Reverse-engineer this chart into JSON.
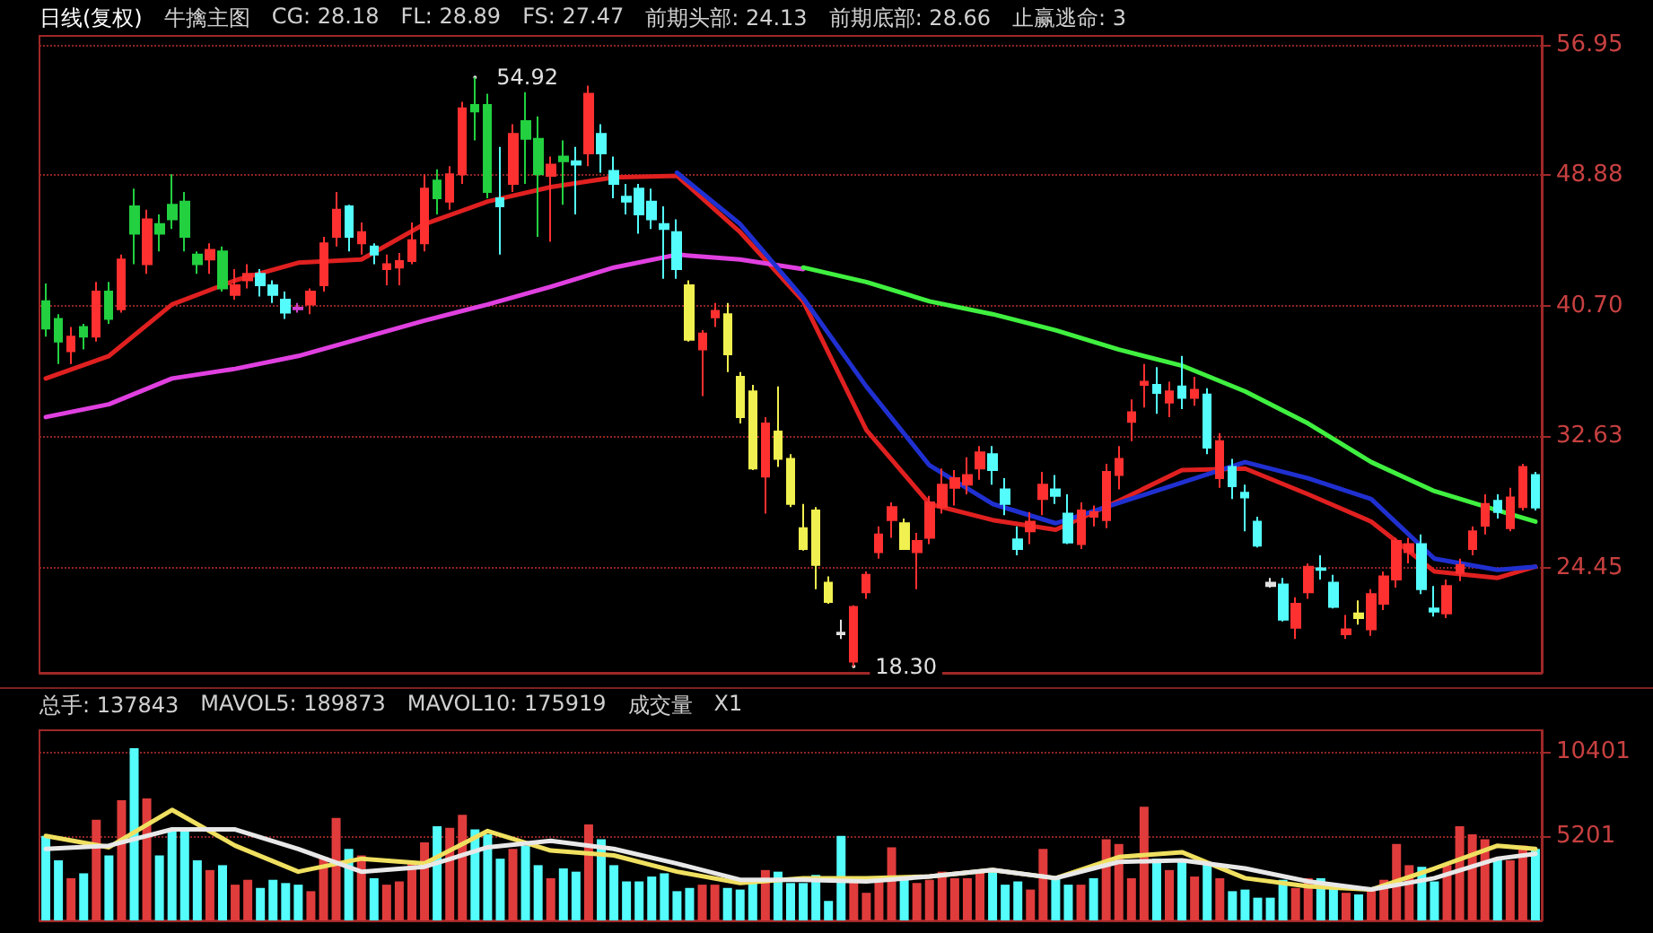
{
  "chart_data": [
    {
      "type": "candlestick",
      "title": "日线(复权)",
      "annotations": [
        "牛擒主图",
        "CG: 28.18",
        "FL: 28.89",
        "FS: 27.47",
        "前期头部: 24.13",
        "前期底部: 28.66",
        "止赢逃命: 3",
        "54.92",
        "18.30"
      ],
      "categories": [
        null,
        null,
        null,
        null,
        null,
        null,
        null,
        null,
        null,
        null,
        null,
        null,
        null,
        null,
        null,
        null,
        null,
        null,
        null,
        null,
        null,
        null,
        null,
        null,
        null,
        null,
        null,
        null,
        null,
        null,
        null,
        null,
        null,
        null,
        null,
        null,
        null,
        null,
        null,
        null,
        null,
        null,
        null,
        null,
        null,
        null,
        null,
        null,
        null,
        null,
        null,
        null,
        null,
        null,
        null,
        null,
        null,
        null,
        null,
        null,
        null,
        null,
        null,
        null,
        null,
        null,
        null,
        null,
        null,
        null,
        null,
        null,
        null,
        null,
        null,
        null,
        null,
        null,
        null,
        null,
        null,
        null,
        null,
        null,
        null,
        null,
        null,
        null,
        null,
        null,
        null,
        null,
        null,
        null,
        null,
        null,
        null,
        null,
        null,
        null,
        null,
        null,
        null,
        null,
        null,
        null,
        null,
        null,
        null,
        null,
        null,
        null,
        null,
        null,
        null,
        null,
        null,
        null,
        null
      ],
      "ohlc": [
        [
          41.0,
          42.1,
          38.8,
          39.3
        ],
        [
          39.9,
          40.2,
          37.1,
          38.5
        ],
        [
          37.9,
          39.4,
          37.1,
          38.8
        ],
        [
          39.4,
          39.6,
          38.0,
          38.8
        ],
        [
          38.8,
          42.2,
          38.5,
          41.6
        ],
        [
          41.6,
          42.2,
          39.6,
          39.9
        ],
        [
          40.5,
          43.9,
          40.3,
          43.6
        ],
        [
          46.9,
          48.0,
          43.3,
          45.2
        ],
        [
          43.3,
          46.7,
          42.7,
          46.1
        ],
        [
          45.8,
          46.4,
          44.1,
          45.2
        ],
        [
          47.0,
          48.9,
          45.5,
          46.1
        ],
        [
          47.2,
          47.8,
          44.1,
          45.0
        ],
        [
          43.9,
          44.1,
          42.7,
          43.3
        ],
        [
          43.6,
          44.6,
          42.7,
          44.2
        ],
        [
          44.1,
          44.4,
          41.6,
          41.8
        ],
        [
          41.4,
          43.0,
          41.1,
          42.0
        ],
        [
          42.3,
          43.3,
          41.8,
          42.7
        ],
        [
          42.7,
          43.0,
          41.3,
          42.0
        ],
        [
          42.0,
          42.3,
          40.9,
          41.4
        ],
        [
          41.1,
          41.6,
          39.9,
          40.3
        ],
        [
          40.5,
          40.9,
          40.3,
          40.6
        ],
        [
          40.8,
          41.8,
          40.2,
          41.6
        ],
        [
          42.0,
          45.0,
          41.6,
          44.6
        ],
        [
          45.0,
          47.8,
          44.4,
          46.7
        ],
        [
          46.9,
          47.0,
          44.1,
          45.0
        ],
        [
          44.6,
          45.9,
          43.9,
          45.3
        ],
        [
          44.4,
          44.6,
          43.3,
          43.9
        ],
        [
          43.0,
          43.9,
          42.0,
          43.3
        ],
        [
          43.1,
          44.0,
          42.0,
          43.5
        ],
        [
          43.5,
          45.9,
          43.3,
          44.8
        ],
        [
          44.6,
          48.9,
          44.1,
          48.0
        ],
        [
          48.5,
          49.2,
          46.4,
          47.4
        ],
        [
          47.2,
          49.4,
          46.7,
          48.9
        ],
        [
          48.9,
          53.4,
          48.3,
          53.0
        ],
        [
          53.2,
          54.92,
          51.0,
          52.8
        ],
        [
          53.2,
          53.9,
          47.4,
          47.8
        ],
        [
          47.4,
          50.6,
          43.9,
          46.9
        ],
        [
          48.3,
          52.0,
          47.8,
          51.4
        ],
        [
          52.2,
          54.0,
          48.3,
          51.1
        ],
        [
          51.1,
          52.5,
          45.0,
          48.9
        ],
        [
          48.8,
          50.0,
          44.7,
          49.5
        ],
        [
          50.0,
          51.0,
          47.0,
          49.7
        ],
        [
          49.7,
          50.6,
          46.4,
          49.5
        ],
        [
          50.2,
          54.4,
          49.4,
          53.9
        ],
        [
          51.4,
          52.0,
          49.0,
          50.2
        ],
        [
          49.1,
          50.0,
          47.4,
          48.3
        ],
        [
          47.5,
          48.3,
          46.4,
          47.2
        ],
        [
          48.0,
          48.3,
          45.2,
          46.4
        ],
        [
          47.2,
          48.0,
          45.5,
          46.1
        ],
        [
          45.8,
          46.9,
          42.4,
          45.5
        ],
        [
          45.3,
          46.1,
          42.4,
          43.0
        ],
        [
          42.0,
          42.3,
          38.5,
          38.6
        ],
        [
          38.0,
          39.2,
          35.1,
          39.0
        ],
        [
          40.0,
          40.9,
          39.4,
          40.4
        ],
        [
          40.2,
          40.9,
          36.6,
          37.7
        ],
        [
          36.3,
          36.6,
          33.4,
          33.8
        ],
        [
          35.4,
          35.8,
          30.5,
          30.6
        ],
        [
          30.1,
          33.8,
          27.8,
          33.4
        ],
        [
          32.9,
          35.7,
          30.7,
          31.2
        ],
        [
          31.2,
          31.5,
          28.2,
          28.4
        ],
        [
          26.9,
          28.4,
          25.5,
          25.6
        ],
        [
          28.0,
          28.2,
          23.1,
          24.6
        ],
        [
          23.5,
          23.9,
          22.2,
          22.3
        ],
        [
          20.4,
          21.2,
          20.0,
          20.3
        ],
        [
          18.6,
          22.1,
          18.3,
          22.0
        ],
        [
          22.9,
          24.2,
          22.5,
          24.0
        ],
        [
          25.4,
          27.0,
          25.0,
          26.5
        ],
        [
          27.4,
          28.5,
          26.3,
          28.2
        ],
        [
          27.2,
          27.5,
          25.6,
          25.6
        ],
        [
          25.4,
          26.6,
          23.1,
          26.1
        ],
        [
          26.3,
          28.9,
          25.9,
          28.5
        ],
        [
          28.2,
          30.6,
          27.8,
          29.6
        ],
        [
          29.4,
          30.5,
          28.3,
          30.0
        ],
        [
          29.6,
          31.3,
          29.0,
          30.2
        ],
        [
          30.6,
          32.0,
          29.9,
          31.6
        ],
        [
          31.5,
          32.0,
          29.6,
          30.5
        ],
        [
          29.3,
          30.0,
          27.7,
          28.4
        ],
        [
          26.2,
          27.0,
          25.2,
          25.6
        ],
        [
          26.7,
          27.9,
          25.9,
          27.3
        ],
        [
          28.7,
          30.4,
          27.7,
          29.6
        ],
        [
          29.3,
          30.2,
          28.4,
          28.9
        ],
        [
          27.8,
          29.0,
          25.9,
          26.0
        ],
        [
          25.9,
          28.5,
          25.6,
          28.0
        ],
        [
          27.6,
          28.3,
          27.0,
          27.9
        ],
        [
          27.4,
          30.9,
          26.9,
          30.4
        ],
        [
          30.2,
          32.0,
          29.3,
          31.2
        ],
        [
          33.5,
          34.9,
          32.3,
          34.1
        ],
        [
          35.8,
          37.1,
          34.4,
          36.0
        ],
        [
          35.8,
          36.9,
          34.0,
          35.3
        ],
        [
          34.7,
          36.0,
          33.8,
          35.4
        ],
        [
          35.7,
          37.6,
          34.3,
          35.0
        ],
        [
          35.0,
          36.3,
          34.5,
          35.5
        ],
        [
          35.2,
          35.6,
          31.5,
          31.9
        ],
        [
          30.0,
          32.8,
          29.4,
          32.3
        ],
        [
          30.7,
          31.2,
          28.7,
          29.5
        ],
        [
          29.1,
          29.6,
          26.7,
          28.8
        ],
        [
          27.3,
          27.6,
          25.7,
          25.8
        ],
        [
          23.5,
          23.8,
          23.2,
          23.3
        ],
        [
          23.4,
          23.8,
          21.1,
          21.2
        ],
        [
          20.7,
          22.6,
          20.0,
          22.2
        ],
        [
          22.9,
          24.7,
          22.5,
          24.5
        ],
        [
          24.3,
          25.2,
          23.7,
          24.4
        ],
        [
          23.5,
          24.0,
          21.9,
          22.0
        ],
        [
          20.3,
          21.5,
          20.0,
          20.6
        ],
        [
          21.6,
          22.4,
          20.9,
          21.3
        ],
        [
          20.6,
          23.1,
          20.2,
          22.8
        ],
        [
          22.2,
          24.2,
          21.8,
          23.9
        ],
        [
          23.7,
          26.3,
          23.2,
          26.1
        ],
        [
          25.4,
          26.3,
          24.7,
          25.9
        ],
        [
          25.9,
          26.5,
          22.8,
          23.1
        ],
        [
          21.9,
          23.3,
          21.4,
          21.7
        ],
        [
          21.6,
          23.7,
          21.3,
          23.3
        ],
        [
          24.1,
          25.0,
          23.6,
          24.6
        ],
        [
          25.6,
          27.0,
          25.2,
          26.7
        ],
        [
          27.05,
          29.0,
          26.5,
          28.4
        ],
        [
          28.6,
          29.0,
          27.5,
          27.9
        ],
        [
          26.9,
          29.4,
          26.7,
          28.8
        ],
        [
          28.2,
          30.9,
          28.0,
          30.7
        ],
        [
          30.2,
          30.4,
          28.0,
          28.18
        ]
      ],
      "colors": [
        "#22d040",
        "#22d040",
        "#ff3030",
        "#22d040",
        "#ff3030",
        "#22d040",
        "#ff3030",
        "#22d040",
        "#ff3030",
        "#22d040",
        "#22d040",
        "#22d040",
        "#22d040",
        "#ff3030",
        "#22d040",
        "#ff3030",
        "#ff3030",
        "#54fcfc",
        "#54fcfc",
        "#54fcfc",
        "#d040d0",
        "#ff3030",
        "#ff3030",
        "#ff3030",
        "#54fcfc",
        "#ff3030",
        "#54fcfc",
        "#ff3030",
        "#ff3030",
        "#ff3030",
        "#ff3030",
        "#22d040",
        "#ff3030",
        "#ff3030",
        "#22d040",
        "#22d040",
        "#54fcfc",
        "#ff3030",
        "#22d040",
        "#22d040",
        "#ff3030",
        "#22d040",
        "#54fcfc",
        "#ff3030",
        "#54fcfc",
        "#54fcfc",
        "#54fcfc",
        "#54fcfc",
        "#54fcfc",
        "#54fcfc",
        "#54fcfc",
        "#f0f050",
        "#ff3030",
        "#ff3030",
        "#f0f050",
        "#f0f050",
        "#f0f050",
        "#ff3030",
        "#f0f050",
        "#f0f050",
        "#f0f050",
        "#f0f050",
        "#f0f050",
        "#e0e0e0",
        "#ff3030",
        "#ff3030",
        "#ff3030",
        "#ff3030",
        "#f0f050",
        "#ff3030",
        "#ff3030",
        "#ff3030",
        "#ff3030",
        "#ff3030",
        "#ff3030",
        "#54fcfc",
        "#54fcfc",
        "#54fcfc",
        "#ff3030",
        "#ff3030",
        "#54fcfc",
        "#54fcfc",
        "#ff3030",
        "#ff3030",
        "#ff3030",
        "#ff3030",
        "#ff3030",
        "#ff3030",
        "#54fcfc",
        "#ff3030",
        "#54fcfc",
        "#ff3030",
        "#54fcfc",
        "#ff3030",
        "#54fcfc",
        "#54fcfc",
        "#54fcfc",
        "#e0e0e0",
        "#54fcfc",
        "#ff3030",
        "#ff3030",
        "#54fcfc",
        "#54fcfc",
        "#ff3030",
        "#f0f050",
        "#ff3030",
        "#ff3030",
        "#ff3030",
        "#ff3030",
        "#54fcfc",
        "#54fcfc",
        "#ff3030",
        "#ff3030",
        "#ff3030",
        "#ff3030",
        "#54fcfc",
        "#ff3030",
        "#ff3030",
        "#54fcfc"
      ],
      "series": [
        {
          "type": "line",
          "color": "#e02020",
          "values": [
            36.2,
            null,
            null,
            null,
            null,
            37.6,
            null,
            null,
            null,
            null,
            40.8,
            null,
            null,
            null,
            null,
            42.3,
            null,
            null,
            null,
            null,
            43.4,
            null,
            null,
            null,
            null,
            43.6,
            null,
            null,
            null,
            null,
            45.8,
            null,
            null,
            null,
            null,
            47.2,
            null,
            null,
            null,
            null,
            48.1,
            null,
            null,
            null,
            null,
            48.7,
            null,
            null,
            null,
            null,
            48.8,
            null,
            null,
            null,
            null,
            45.3,
            null,
            null,
            null,
            null,
            41.0,
            null,
            null,
            null,
            null,
            33.0,
            null,
            null,
            null,
            null,
            28.4,
            null,
            null,
            null,
            null,
            27.4,
            null,
            null,
            null,
            null,
            26.8,
            null,
            null,
            null,
            null,
            28.6,
            null,
            null,
            null,
            null,
            30.5,
            null,
            null,
            null,
            null,
            30.6,
            null,
            null,
            null,
            null,
            29.0,
            null,
            null,
            null,
            null,
            27.3,
            null,
            null,
            null,
            null,
            24.2,
            null,
            null,
            null,
            null,
            23.8,
            null,
            null,
            24.5
          ]
        },
        {
          "type": "line",
          "color": "#e040e0",
          "values": [
            33.8,
            null,
            null,
            null,
            null,
            34.6,
            null,
            null,
            null,
            null,
            36.2,
            null,
            null,
            null,
            null,
            36.8,
            null,
            null,
            null,
            null,
            37.6,
            null,
            null,
            null,
            null,
            38.7,
            null,
            null,
            null,
            null,
            39.8,
            null,
            null,
            null,
            null,
            40.8,
            null,
            null,
            null,
            null,
            41.9,
            null,
            null,
            null,
            null,
            43.1,
            null,
            null,
            null,
            null,
            43.9,
            null,
            null,
            null,
            null,
            43.6,
            null,
            null,
            null,
            null,
            43.0,
            null,
            null,
            null,
            null,
            null,
            null,
            null,
            null,
            null,
            null,
            null,
            null,
            null,
            null,
            null,
            null,
            null,
            null,
            null,
            null,
            null,
            null,
            null,
            null,
            null,
            null,
            null,
            null,
            null,
            null,
            null,
            null,
            null,
            null,
            null,
            null,
            null,
            null,
            null,
            null,
            null,
            null,
            null,
            null,
            null,
            null,
            null,
            null,
            null,
            null,
            null,
            null,
            null,
            null,
            null,
            null,
            null,
            null
          ]
        },
        {
          "type": "line",
          "color": "#40f040",
          "values": [
            null,
            null,
            null,
            null,
            null,
            null,
            null,
            null,
            null,
            null,
            null,
            null,
            null,
            null,
            null,
            null,
            null,
            null,
            null,
            null,
            null,
            null,
            null,
            null,
            null,
            null,
            null,
            null,
            null,
            null,
            null,
            null,
            null,
            null,
            null,
            null,
            null,
            null,
            null,
            null,
            null,
            null,
            null,
            null,
            null,
            null,
            null,
            null,
            null,
            null,
            null,
            null,
            null,
            null,
            null,
            null,
            null,
            null,
            null,
            null,
            43.1,
            null,
            null,
            null,
            null,
            42.2,
            null,
            null,
            null,
            null,
            41.0,
            null,
            null,
            null,
            null,
            40.2,
            null,
            null,
            null,
            null,
            39.2,
            null,
            null,
            null,
            null,
            38.0,
            null,
            null,
            null,
            null,
            37.0,
            null,
            null,
            null,
            null,
            35.4,
            null,
            null,
            null,
            null,
            33.4,
            null,
            null,
            null,
            null,
            31.0,
            null,
            null,
            null,
            null,
            29.2,
            null,
            null,
            null,
            null,
            28.0,
            null,
            null,
            27.3
          ]
        },
        {
          "type": "line",
          "color": "#2030d0",
          "values": [
            null,
            null,
            null,
            null,
            null,
            null,
            null,
            null,
            null,
            null,
            null,
            null,
            null,
            null,
            null,
            null,
            null,
            null,
            null,
            null,
            null,
            null,
            null,
            null,
            null,
            null,
            null,
            null,
            null,
            null,
            null,
            null,
            null,
            null,
            null,
            null,
            null,
            null,
            null,
            null,
            null,
            null,
            null,
            null,
            null,
            null,
            null,
            null,
            null,
            null,
            49.0,
            null,
            null,
            null,
            null,
            45.8,
            null,
            null,
            null,
            null,
            41.2,
            null,
            null,
            null,
            null,
            35.7,
            null,
            null,
            null,
            null,
            30.8,
            null,
            null,
            null,
            null,
            28.4,
            null,
            null,
            null,
            null,
            27.2,
            null,
            null,
            null,
            null,
            null,
            null,
            null,
            null,
            null,
            null,
            null,
            null,
            null,
            null,
            31.0,
            null,
            null,
            null,
            null,
            30.0,
            null,
            null,
            null,
            null,
            28.7,
            null,
            null,
            null,
            null,
            25.0,
            null,
            null,
            null,
            null,
            24.3,
            null,
            null,
            24.5
          ]
        }
      ],
      "ylim": [
        17.9,
        57.5
      ],
      "yticks": [
        24.45,
        32.63,
        {
          "value": 40.7,
          "label": "40.70"
        },
        48.88,
        56.95
      ],
      "grid": "y",
      "tick_labels": "y",
      "marker": "none"
    },
    {
      "type": "bar",
      "annotations": [
        "总手: 137843",
        "MAVOL5: 189873",
        "MAVOL10: 175919",
        "成交量",
        "X1"
      ],
      "categories": [
        null,
        null,
        null,
        null,
        null,
        null,
        null,
        null,
        null,
        null,
        null,
        null,
        null,
        null,
        null,
        null,
        null,
        null,
        null,
        null,
        null,
        null,
        null,
        null,
        null,
        null,
        null,
        null,
        null,
        null,
        null,
        null,
        null,
        null,
        null,
        null,
        null,
        null,
        null,
        null,
        null,
        null,
        null,
        null,
        null,
        null,
        null,
        null,
        null,
        null,
        null,
        null,
        null,
        null,
        null,
        null,
        null,
        null,
        null,
        null,
        null,
        null,
        null,
        null,
        null,
        null,
        null,
        null,
        null,
        null,
        null,
        null,
        null,
        null,
        null,
        null,
        null,
        null,
        null,
        null,
        null,
        null,
        null,
        null,
        null,
        null,
        null,
        null,
        null,
        null,
        null,
        null,
        null,
        null,
        null,
        null,
        null,
        null,
        null,
        null,
        null,
        null,
        null,
        null,
        null,
        null,
        null,
        null,
        null,
        null,
        null,
        null,
        null,
        null,
        null,
        null,
        null,
        null,
        null
      ],
      "series": [
        {
          "values": [
            5200,
            3700,
            2600,
            2900,
            6200,
            4000,
            7400,
            10600,
            7500,
            4000,
            5500,
            5700,
            3700,
            3100,
            3400,
            2200,
            2500,
            2000,
            2500,
            2300,
            2200,
            1800,
            3900,
            6300,
            4400,
            4000,
            2600,
            2200,
            2400,
            3600,
            4800,
            5800,
            5700,
            6500,
            5600,
            5300,
            3800,
            4400,
            4600,
            3400,
            2600,
            3200,
            3000,
            5900,
            5000,
            3400,
            2400,
            2400,
            2700,
            2900,
            1800,
            2000,
            2200,
            2200,
            2000,
            1900,
            2400,
            3100,
            3000,
            2300,
            2300,
            2800,
            1200,
            5200,
            2400,
            1700,
            2700,
            4500,
            2600,
            2300,
            2500,
            3000,
            2600,
            2600,
            3000,
            3200,
            2200,
            2400,
            1900,
            4400,
            2700,
            2200,
            2200,
            2600,
            5000,
            4700,
            2600,
            7000,
            3800,
            3100,
            3800,
            2700,
            3600,
            2600,
            1800,
            1900,
            1400,
            1400,
            2500,
            2000,
            2600,
            2600,
            2200,
            1700,
            1600,
            2000,
            2500,
            4700,
            3400,
            3300,
            2400,
            3400,
            5800,
            5300,
            5000,
            3800,
            3700,
            4600,
            4400
          ],
          "colors": [
            "#54fcfc",
            "#54fcfc",
            "#e03c3c",
            "#54fcfc",
            "#e03c3c",
            "#54fcfc",
            "#e03c3c",
            "#54fcfc",
            "#e03c3c",
            "#54fcfc",
            "#54fcfc",
            "#54fcfc",
            "#54fcfc",
            "#e03c3c",
            "#54fcfc",
            "#e03c3c",
            "#e03c3c",
            "#54fcfc",
            "#54fcfc",
            "#54fcfc",
            "#54fcfc",
            "#e03c3c",
            "#e03c3c",
            "#e03c3c",
            "#54fcfc",
            "#e03c3c",
            "#54fcfc",
            "#e03c3c",
            "#e03c3c",
            "#e03c3c",
            "#e03c3c",
            "#54fcfc",
            "#e03c3c",
            "#e03c3c",
            "#54fcfc",
            "#54fcfc",
            "#54fcfc",
            "#e03c3c",
            "#54fcfc",
            "#54fcfc",
            "#e03c3c",
            "#54fcfc",
            "#54fcfc",
            "#e03c3c",
            "#54fcfc",
            "#54fcfc",
            "#54fcfc",
            "#54fcfc",
            "#54fcfc",
            "#54fcfc",
            "#54fcfc",
            "#54fcfc",
            "#e03c3c",
            "#e03c3c",
            "#54fcfc",
            "#54fcfc",
            "#54fcfc",
            "#e03c3c",
            "#54fcfc",
            "#54fcfc",
            "#54fcfc",
            "#54fcfc",
            "#54fcfc",
            "#54fcfc",
            "#e03c3c",
            "#e03c3c",
            "#e03c3c",
            "#e03c3c",
            "#54fcfc",
            "#e03c3c",
            "#e03c3c",
            "#e03c3c",
            "#e03c3c",
            "#e03c3c",
            "#e03c3c",
            "#54fcfc",
            "#54fcfc",
            "#54fcfc",
            "#e03c3c",
            "#e03c3c",
            "#54fcfc",
            "#54fcfc",
            "#e03c3c",
            "#54fcfc",
            "#e03c3c",
            "#e03c3c",
            "#e03c3c",
            "#e03c3c",
            "#54fcfc",
            "#e03c3c",
            "#54fcfc",
            "#e03c3c",
            "#54fcfc",
            "#e03c3c",
            "#54fcfc",
            "#54fcfc",
            "#54fcfc",
            "#54fcfc",
            "#54fcfc",
            "#e03c3c",
            "#e03c3c",
            "#54fcfc",
            "#54fcfc",
            "#e03c3c",
            "#54fcfc",
            "#e03c3c",
            "#e03c3c",
            "#e03c3c",
            "#e03c3c",
            "#54fcfc",
            "#54fcfc",
            "#e03c3c",
            "#e03c3c",
            "#e03c3c",
            "#e03c3c",
            "#54fcfc",
            "#e03c3c",
            "#e03c3c",
            "#54fcfc"
          ]
        },
        {
          "type": "line",
          "color": "#f0e060",
          "values": [
            5200,
            null,
            null,
            null,
            null,
            4500,
            null,
            null,
            null,
            null,
            6800,
            null,
            null,
            null,
            null,
            4600,
            null,
            null,
            null,
            null,
            3000,
            null,
            null,
            null,
            null,
            3800,
            null,
            null,
            null,
            null,
            3500,
            null,
            null,
            null,
            null,
            5500,
            null,
            null,
            null,
            null,
            4300,
            null,
            null,
            null,
            null,
            4000,
            null,
            null,
            null,
            null,
            3000,
            null,
            null,
            null,
            null,
            2300,
            null,
            null,
            null,
            null,
            2600,
            null,
            null,
            null,
            null,
            2600,
            null,
            null,
            null,
            null,
            2700,
            null,
            null,
            null,
            null,
            3100,
            null,
            null,
            null,
            null,
            2600,
            null,
            null,
            null,
            null,
            3900,
            null,
            null,
            null,
            null,
            4200,
            null,
            null,
            null,
            null,
            2600,
            null,
            null,
            null,
            null,
            2100,
            null,
            null,
            null,
            null,
            1900,
            null,
            null,
            null,
            null,
            3200,
            null,
            null,
            null,
            null,
            4600,
            null,
            null,
            4400
          ]
        },
        {
          "type": "line",
          "color": "#e8e8e8",
          "values": [
            4400,
            null,
            null,
            null,
            null,
            4600,
            null,
            null,
            null,
            null,
            5600,
            null,
            null,
            null,
            null,
            5600,
            null,
            null,
            null,
            null,
            4400,
            null,
            null,
            null,
            null,
            3000,
            null,
            null,
            null,
            null,
            3300,
            null,
            null,
            null,
            null,
            4500,
            null,
            null,
            null,
            null,
            4900,
            null,
            null,
            null,
            null,
            4400,
            null,
            null,
            null,
            null,
            3500,
            null,
            null,
            null,
            null,
            2500,
            null,
            null,
            null,
            null,
            2500,
            null,
            null,
            null,
            null,
            2400,
            null,
            null,
            null,
            null,
            2700,
            null,
            null,
            null,
            null,
            3100,
            null,
            null,
            null,
            null,
            2600,
            null,
            null,
            null,
            null,
            3600,
            null,
            null,
            null,
            null,
            3700,
            null,
            null,
            null,
            null,
            3200,
            null,
            null,
            null,
            null,
            2400,
            null,
            null,
            null,
            null,
            1900,
            null,
            null,
            null,
            null,
            2600,
            null,
            null,
            null,
            null,
            3800,
            null,
            null,
            4100
          ]
        }
      ],
      "ylim": [
        0,
        11700
      ],
      "yticks": [
        5201,
        10401
      ],
      "grid": "y",
      "tick_labels": "y",
      "marker": "none"
    }
  ]
}
